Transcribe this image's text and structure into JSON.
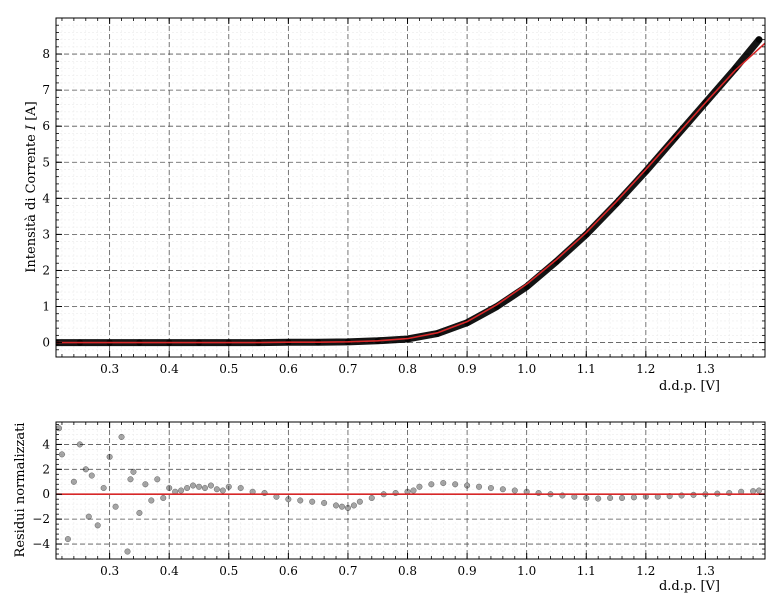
{
  "chart_data": [
    {
      "type": "scatter",
      "title": "",
      "xlabel": "d.d.p. [V]",
      "ylabel": "Intensità di Corrente I [A]",
      "ylabel_parts": [
        "Intensità di Corrente ",
        "I",
        " [A]"
      ],
      "xlim": [
        0.21,
        1.4
      ],
      "ylim": [
        -0.4,
        9.0
      ],
      "xticks": [
        0.3,
        0.4,
        0.5,
        0.6,
        0.7,
        0.8,
        0.9,
        1.0,
        1.1,
        1.2,
        1.3
      ],
      "xtick_labels": [
        "0.3",
        "0.4",
        "0.5",
        "0.6",
        "0.7",
        "0.8",
        "0.9",
        "1.0",
        "1.1",
        "1.2",
        "1.3"
      ],
      "yticks": [
        0,
        1,
        2,
        3,
        4,
        5,
        6,
        7,
        8
      ],
      "ytick_labels": [
        "0",
        "1",
        "2",
        "3",
        "4",
        "5",
        "6",
        "7",
        "8"
      ],
      "grid": true,
      "legend": "none",
      "colors": {
        "data": "#000000",
        "fit": "#d62728"
      },
      "series": [
        {
          "kind": "data",
          "x": [
            0.21,
            0.25,
            0.3,
            0.35,
            0.4,
            0.45,
            0.5,
            0.55,
            0.6,
            0.65,
            0.7,
            0.75,
            0.8,
            0.85,
            0.9,
            0.95,
            1.0,
            1.05,
            1.1,
            1.15,
            1.2,
            1.25,
            1.3,
            1.35,
            1.39
          ],
          "y": [
            0.0,
            0.0,
            0.0,
            0.0,
            0.0,
            0.0,
            0.0,
            0.0,
            0.01,
            0.01,
            0.02,
            0.05,
            0.1,
            0.25,
            0.55,
            1.0,
            1.55,
            2.25,
            3.0,
            3.85,
            4.75,
            5.7,
            6.65,
            7.6,
            8.4
          ]
        },
        {
          "kind": "fit",
          "x": [
            0.21,
            0.25,
            0.3,
            0.35,
            0.4,
            0.45,
            0.5,
            0.55,
            0.6,
            0.65,
            0.7,
            0.75,
            0.8,
            0.85,
            0.9,
            0.95,
            1.0,
            1.05,
            1.1,
            1.15,
            1.2,
            1.25,
            1.3,
            1.35,
            1.4
          ],
          "y": [
            0.0,
            0.0,
            0.0,
            0.0,
            0.0,
            0.0,
            0.0,
            0.0,
            0.01,
            0.01,
            0.02,
            0.05,
            0.11,
            0.27,
            0.58,
            1.05,
            1.62,
            2.3,
            3.05,
            3.9,
            4.8,
            5.72,
            6.65,
            7.55,
            8.3
          ]
        }
      ]
    },
    {
      "type": "scatter",
      "title": "",
      "xlabel": "d.d.p. [V]",
      "ylabel": "Residui normalizzati",
      "xlim": [
        0.21,
        1.4
      ],
      "ylim": [
        -5.2,
        5.8
      ],
      "xticks": [
        0.3,
        0.4,
        0.5,
        0.6,
        0.7,
        0.8,
        0.9,
        1.0,
        1.1,
        1.2,
        1.3
      ],
      "xtick_labels": [
        "0.3",
        "0.4",
        "0.5",
        "0.6",
        "0.7",
        "0.8",
        "0.9",
        "1.0",
        "1.1",
        "1.2",
        "1.3"
      ],
      "yticks": [
        -4,
        -2,
        0,
        2,
        4
      ],
      "ytick_labels": [
        "−4",
        "−2",
        "0",
        "2",
        "4"
      ],
      "grid": true,
      "legend": "none",
      "colors": {
        "data": "#000000",
        "zero_line": "#d62728"
      },
      "zero_line": 0,
      "series": [
        {
          "kind": "residuals",
          "x": [
            0.215,
            0.22,
            0.23,
            0.24,
            0.25,
            0.26,
            0.265,
            0.27,
            0.28,
            0.29,
            0.3,
            0.31,
            0.32,
            0.33,
            0.335,
            0.34,
            0.35,
            0.36,
            0.37,
            0.38,
            0.39,
            0.4,
            0.41,
            0.42,
            0.43,
            0.44,
            0.45,
            0.46,
            0.47,
            0.48,
            0.49,
            0.5,
            0.52,
            0.54,
            0.56,
            0.58,
            0.6,
            0.62,
            0.64,
            0.66,
            0.68,
            0.69,
            0.7,
            0.71,
            0.72,
            0.74,
            0.76,
            0.78,
            0.8,
            0.81,
            0.82,
            0.84,
            0.86,
            0.88,
            0.9,
            0.92,
            0.94,
            0.96,
            0.98,
            1.0,
            1.02,
            1.04,
            1.06,
            1.08,
            1.1,
            1.12,
            1.14,
            1.16,
            1.18,
            1.2,
            1.22,
            1.24,
            1.26,
            1.28,
            1.3,
            1.32,
            1.34,
            1.36,
            1.38,
            1.39
          ],
          "y": [
            5.3,
            3.2,
            -3.6,
            1.0,
            4.0,
            2.0,
            -1.8,
            1.5,
            -2.5,
            0.5,
            3.0,
            -1.0,
            4.6,
            -4.6,
            1.2,
            1.8,
            -1.5,
            0.8,
            -0.5,
            1.2,
            -0.3,
            0.5,
            0.2,
            0.3,
            0.5,
            0.7,
            0.6,
            0.5,
            0.7,
            0.4,
            0.3,
            0.6,
            0.5,
            0.2,
            0.1,
            -0.2,
            -0.4,
            -0.5,
            -0.6,
            -0.7,
            -0.9,
            -1.0,
            -1.1,
            -0.9,
            -0.6,
            -0.3,
            0.0,
            0.1,
            0.2,
            0.3,
            0.6,
            0.8,
            0.9,
            0.8,
            0.7,
            0.6,
            0.5,
            0.4,
            0.3,
            0.2,
            0.1,
            0.0,
            -0.1,
            -0.2,
            -0.3,
            -0.35,
            -0.3,
            -0.3,
            -0.25,
            -0.2,
            -0.2,
            -0.15,
            -0.1,
            -0.05,
            0.0,
            0.05,
            0.1,
            0.2,
            0.25,
            0.3
          ]
        }
      ]
    }
  ]
}
